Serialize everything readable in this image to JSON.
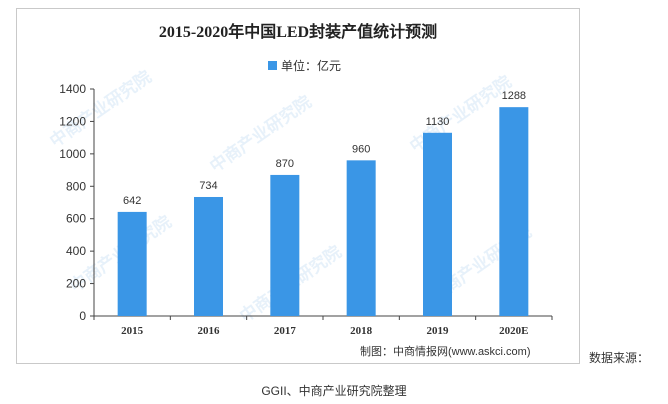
{
  "chart_data": {
    "type": "bar",
    "title": "2015-2020年中国LED封装产值统计预测",
    "legend": {
      "label": "单位：亿元",
      "position": "top"
    },
    "categories": [
      "2015",
      "2016",
      "2017",
      "2018",
      "2019",
      "2020E"
    ],
    "series": [
      {
        "name": "单位：亿元",
        "values": [
          642,
          734,
          870,
          960,
          1130,
          1288
        ]
      }
    ],
    "data_labels": [
      "642",
      "734",
      "870",
      "960",
      "1130",
      "1288"
    ],
    "y_ticks": [
      0,
      200,
      400,
      600,
      800,
      1000,
      1200,
      1400
    ],
    "ylim": [
      0,
      1400
    ],
    "grid": false,
    "bar_color": "#3a96e6"
  },
  "credit": "制图：中商情报网(www.askci.com)",
  "source_label": "数据来源：",
  "source_value": "GGII、中商产业研究院整理",
  "watermark": "中商产业研究院"
}
